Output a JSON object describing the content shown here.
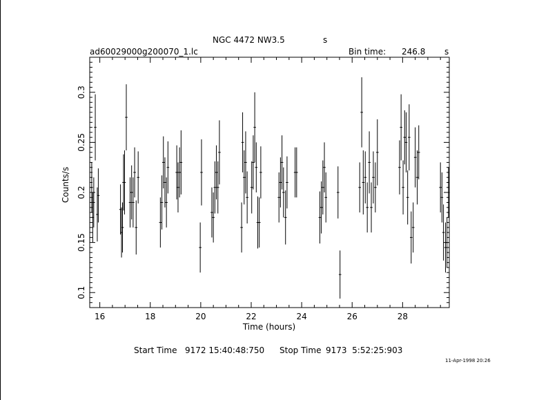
{
  "header": {
    "title": "NGC 4472 NW3.5",
    "title_suffix": "s",
    "filename": "ad60029000g200070_1.lc",
    "bin_label": "Bin time:",
    "bin_value": "246.8",
    "bin_unit": "s"
  },
  "footer": {
    "start_label": "Start Time",
    "start_value": "9172 15:40:48:750",
    "stop_label": "Stop Time",
    "stop_value": "9173  5:52:25:903",
    "stamp": "11-Apr-1998 20:26"
  },
  "chart_data": {
    "type": "scatter",
    "xlabel": "Time (hours)",
    "ylabel": "Counts/s",
    "xlim": [
      15.6,
      29.85
    ],
    "ylim": [
      0.085,
      0.335
    ],
    "xticks": [
      16,
      18,
      20,
      22,
      24,
      26,
      28
    ],
    "yticks": [
      0.1,
      0.15,
      0.2,
      0.25,
      0.3
    ],
    "grid": false,
    "series": [
      {
        "points": [
          [
            15.68,
            0.205,
            0.025
          ],
          [
            15.72,
            0.175,
            0.025
          ],
          [
            15.76,
            0.19,
            0.025
          ],
          [
            15.82,
            0.265,
            0.033
          ],
          [
            15.9,
            0.178,
            0.027
          ],
          [
            15.94,
            0.197,
            0.027
          ],
          [
            16.82,
            0.183,
            0.025
          ],
          [
            16.86,
            0.16,
            0.025
          ],
          [
            16.9,
            0.165,
            0.025
          ],
          [
            16.94,
            0.21,
            0.028
          ],
          [
            16.98,
            0.21,
            0.032
          ],
          [
            17.05,
            0.275,
            0.033
          ],
          [
            17.2,
            0.19,
            0.025
          ],
          [
            17.26,
            0.2,
            0.027
          ],
          [
            17.32,
            0.19,
            0.025
          ],
          [
            17.38,
            0.22,
            0.025
          ],
          [
            17.44,
            0.165,
            0.027
          ],
          [
            17.52,
            0.215,
            0.026
          ],
          [
            18.4,
            0.17,
            0.025
          ],
          [
            18.46,
            0.19,
            0.027
          ],
          [
            18.52,
            0.23,
            0.026
          ],
          [
            18.58,
            0.21,
            0.025
          ],
          [
            18.64,
            0.19,
            0.025
          ],
          [
            18.7,
            0.225,
            0.026
          ],
          [
            19.05,
            0.22,
            0.027
          ],
          [
            19.1,
            0.205,
            0.025
          ],
          [
            19.16,
            0.22,
            0.025
          ],
          [
            19.22,
            0.23,
            0.032
          ],
          [
            19.98,
            0.145,
            0.025
          ],
          [
            20.03,
            0.22,
            0.033
          ],
          [
            20.44,
            0.18,
            0.025
          ],
          [
            20.5,
            0.175,
            0.025
          ],
          [
            20.56,
            0.205,
            0.026
          ],
          [
            20.62,
            0.22,
            0.027
          ],
          [
            20.68,
            0.205,
            0.026
          ],
          [
            20.74,
            0.24,
            0.032
          ],
          [
            21.62,
            0.165,
            0.025
          ],
          [
            21.66,
            0.25,
            0.03
          ],
          [
            21.72,
            0.215,
            0.027
          ],
          [
            21.78,
            0.23,
            0.031
          ],
          [
            21.84,
            0.195,
            0.026
          ],
          [
            22.02,
            0.205,
            0.026
          ],
          [
            22.08,
            0.23,
            0.027
          ],
          [
            22.14,
            0.265,
            0.035
          ],
          [
            22.2,
            0.225,
            0.025
          ],
          [
            22.26,
            0.17,
            0.026
          ],
          [
            22.32,
            0.17,
            0.025
          ],
          [
            22.38,
            0.22,
            0.026
          ],
          [
            23.1,
            0.195,
            0.025
          ],
          [
            23.16,
            0.21,
            0.025
          ],
          [
            23.22,
            0.23,
            0.027
          ],
          [
            23.28,
            0.2,
            0.025
          ],
          [
            23.36,
            0.175,
            0.027
          ],
          [
            23.42,
            0.21,
            0.026
          ],
          [
            23.74,
            0.22,
            0.025
          ],
          [
            23.8,
            0.22,
            0.025
          ],
          [
            24.72,
            0.175,
            0.026
          ],
          [
            24.78,
            0.185,
            0.026
          ],
          [
            24.84,
            0.205,
            0.027
          ],
          [
            24.9,
            0.225,
            0.025
          ],
          [
            24.96,
            0.195,
            0.025
          ],
          [
            25.44,
            0.2,
            0.026
          ],
          [
            25.52,
            0.118,
            0.024
          ],
          [
            26.3,
            0.205,
            0.025
          ],
          [
            26.38,
            0.28,
            0.035
          ],
          [
            26.44,
            0.21,
            0.032
          ],
          [
            26.52,
            0.215,
            0.026
          ],
          [
            26.6,
            0.185,
            0.025
          ],
          [
            26.68,
            0.23,
            0.031
          ],
          [
            26.76,
            0.185,
            0.025
          ],
          [
            26.84,
            0.215,
            0.026
          ],
          [
            26.92,
            0.205,
            0.025
          ],
          [
            27.0,
            0.24,
            0.033
          ],
          [
            27.88,
            0.225,
            0.027
          ],
          [
            27.94,
            0.265,
            0.033
          ],
          [
            28.02,
            0.205,
            0.027
          ],
          [
            28.08,
            0.255,
            0.027
          ],
          [
            28.14,
            0.25,
            0.03
          ],
          [
            28.2,
            0.195,
            0.027
          ],
          [
            28.26,
            0.255,
            0.033
          ],
          [
            28.34,
            0.155,
            0.026
          ],
          [
            28.42,
            0.165,
            0.025
          ],
          [
            28.5,
            0.235,
            0.03
          ],
          [
            28.58,
            0.215,
            0.027
          ],
          [
            28.64,
            0.24,
            0.027
          ],
          [
            29.5,
            0.205,
            0.025
          ],
          [
            29.56,
            0.195,
            0.025
          ],
          [
            29.62,
            0.16,
            0.028
          ],
          [
            29.7,
            0.145,
            0.025
          ],
          [
            29.76,
            0.15,
            0.025
          ],
          [
            29.82,
            0.2,
            0.025
          ]
        ]
      }
    ]
  }
}
